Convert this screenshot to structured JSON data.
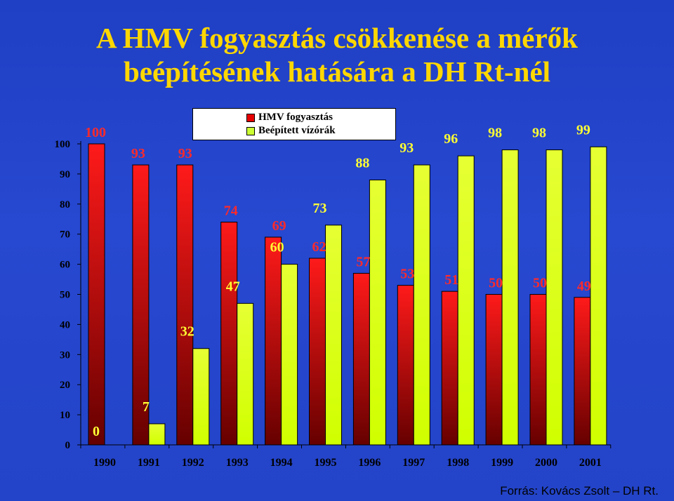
{
  "title_line1": "A HMV fogyasztás csökkenése a mérők",
  "title_line2": "beépítésének hatására a DH Rt-nél",
  "source": "Forrás: Kovács Zsolt – DH Rt.",
  "colors": {
    "hmv_top": "#ff1a1a",
    "hmv_bottom": "#660000",
    "viz_top": "#e6ff33",
    "viz_bottom": "#d0ff00",
    "hmv_label": "#ff2a2a",
    "viz_label": "#ffff33"
  },
  "chart_data": {
    "type": "bar",
    "categories": [
      "1990",
      "1991",
      "1992",
      "1993",
      "1994",
      "1995",
      "1996",
      "1997",
      "1998",
      "1999",
      "2000",
      "2001"
    ],
    "series": [
      {
        "name": "HMV fogyasztás",
        "values": [
          100,
          93,
          93,
          74,
          69,
          62,
          57,
          53,
          51,
          50,
          50,
          49
        ]
      },
      {
        "name": "Beépített vízórák",
        "values": [
          0,
          7,
          32,
          47,
          60,
          73,
          88,
          93,
          96,
          98,
          98,
          99
        ]
      }
    ],
    "ylim": [
      0,
      100
    ],
    "yticks": [
      0,
      10,
      20,
      30,
      40,
      50,
      60,
      70,
      80,
      90,
      100
    ],
    "legend": "top-center",
    "grid": false
  }
}
